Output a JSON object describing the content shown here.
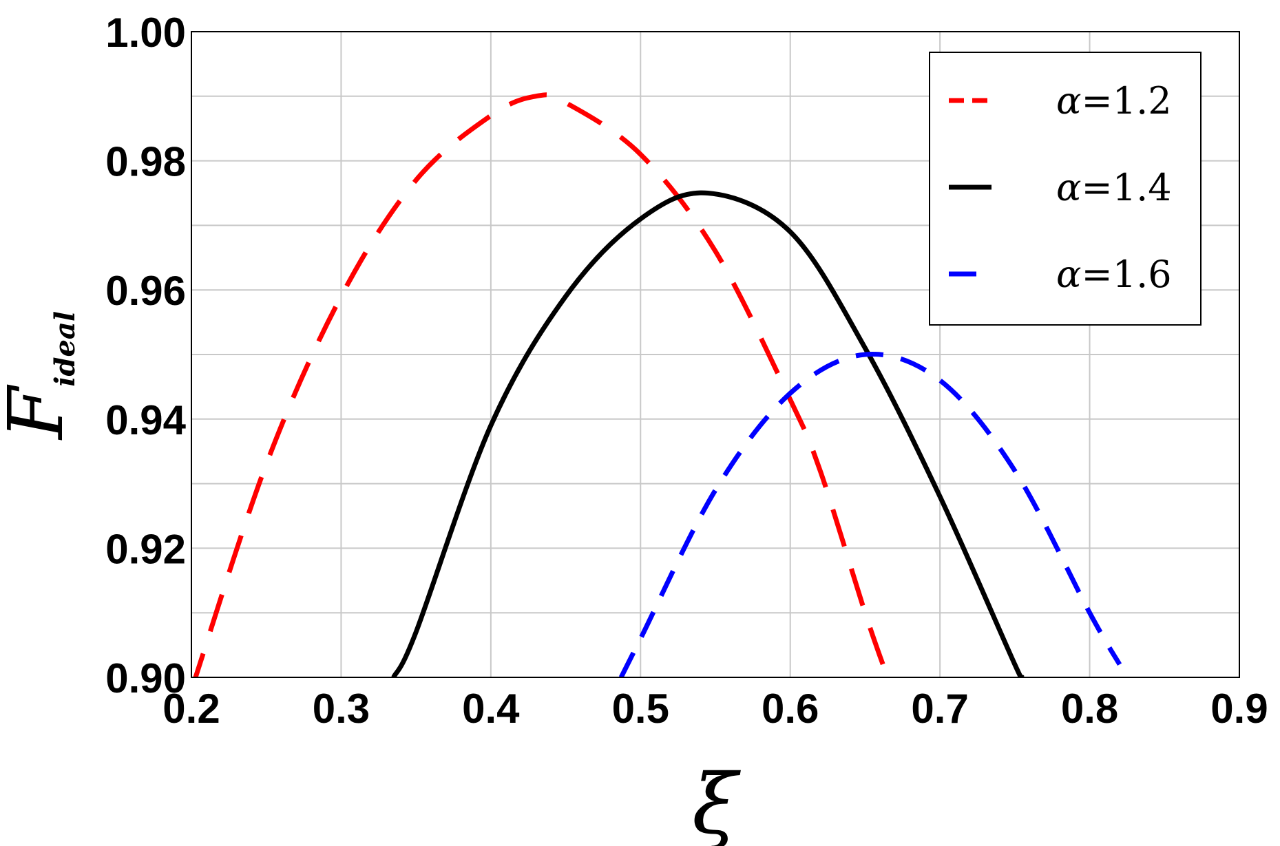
{
  "chart_data": {
    "type": "line",
    "xlabel": "ξ",
    "ylabel": {
      "main": "F",
      "subscript": "ideal"
    },
    "xlim": [
      0.2,
      0.9
    ],
    "ylim": [
      0.9,
      1.0
    ],
    "xticks": [
      0.2,
      0.3,
      0.4,
      0.5,
      0.6,
      0.7,
      0.8,
      0.9
    ],
    "xtick_labels": [
      "0.2",
      "0.3",
      "0.4",
      "0.5",
      "0.6",
      "0.7",
      "0.8",
      "0.9"
    ],
    "yticks": [
      0.9,
      0.92,
      0.94,
      0.96,
      0.98,
      1.0
    ],
    "ytick_labels": [
      "0.90",
      "0.92",
      "0.94",
      "0.96",
      "0.98",
      "1.00"
    ],
    "grid": true,
    "legend_position": "top-right",
    "series": [
      {
        "name": "α=1.2",
        "color": "#ff0000",
        "style": "dashed",
        "x": [
          0.2,
          0.25,
          0.3,
          0.35,
          0.4,
          0.43,
          0.45,
          0.5,
          0.55,
          0.6,
          0.62,
          0.65,
          0.665
        ],
        "y": [
          0.898,
          0.933,
          0.959,
          0.977,
          0.987,
          0.99,
          0.989,
          0.981,
          0.966,
          0.943,
          0.932,
          0.91,
          0.9
        ]
      },
      {
        "name": "α=1.4",
        "color": "#000000",
        "style": "solid",
        "x": [
          0.335,
          0.35,
          0.4,
          0.45,
          0.5,
          0.545,
          0.6,
          0.65,
          0.7,
          0.75,
          0.755
        ],
        "y": [
          0.9,
          0.907,
          0.939,
          0.959,
          0.971,
          0.975,
          0.969,
          0.951,
          0.928,
          0.902,
          0.9
        ]
      },
      {
        "name": "α=1.6",
        "color": "#0000ff",
        "style": "dashed",
        "x": [
          0.487,
          0.5,
          0.55,
          0.6,
          0.65,
          0.7,
          0.75,
          0.8,
          0.82
        ],
        "y": [
          0.9,
          0.906,
          0.929,
          0.944,
          0.95,
          0.946,
          0.932,
          0.91,
          0.902
        ]
      }
    ]
  }
}
